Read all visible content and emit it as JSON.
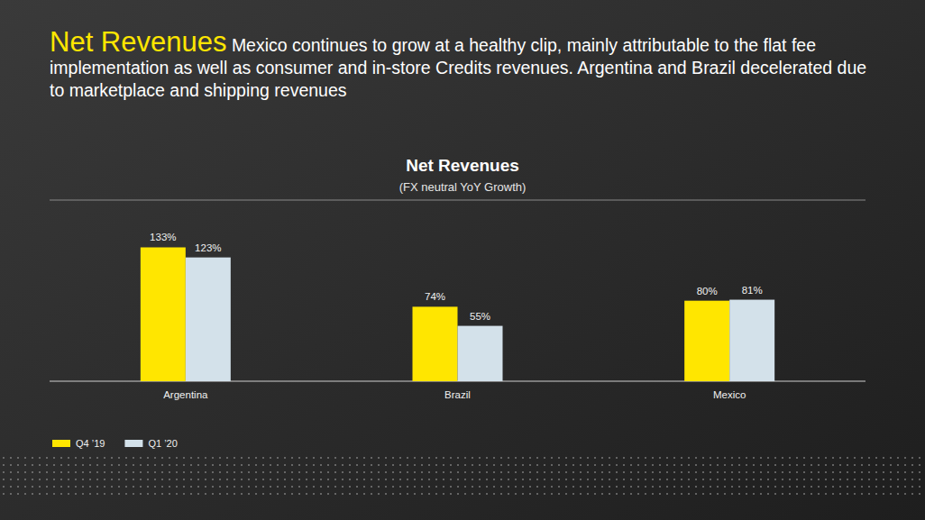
{
  "header": {
    "title": "Net Revenues",
    "text": "Mexico continues to grow at a healthy clip, mainly attributable to the flat fee implementation as well as consumer and in-store Credits revenues. Argentina and Brazil decelerated due to marketplace and shipping revenues"
  },
  "chart_data": {
    "type": "bar",
    "title": "Net Revenues",
    "subtitle": "(FX neutral YoY Growth)",
    "categories": [
      "Argentina",
      "Brazil",
      "Mexico"
    ],
    "series": [
      {
        "name": "Q4 ’19",
        "color": "#ffe600",
        "values": [
          133,
          74,
          80
        ],
        "value_labels": [
          "133%",
          "74%",
          "80%"
        ]
      },
      {
        "name": "Q1 ’20",
        "color": "#d3e1ea",
        "values": [
          123,
          55,
          81
        ],
        "value_labels": [
          "123%",
          "55%",
          "81%"
        ]
      }
    ],
    "ylim": [
      0,
      180
    ],
    "tick_labels": "x",
    "data_labels": true,
    "legend": "bottom-left",
    "grid": false
  }
}
